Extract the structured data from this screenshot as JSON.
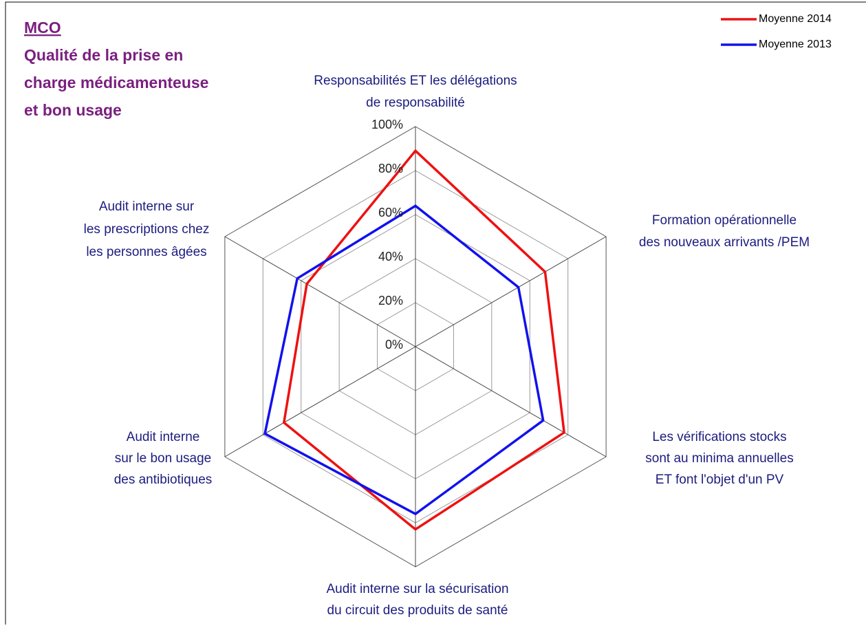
{
  "chart_data": {
    "type": "radar",
    "title": "MCO",
    "subtitle": [
      "Qualité de la prise en",
      "charge médicamenteuse",
      "et bon usage"
    ],
    "categories": [
      [
        "Responsabilités ET les délégations",
        "de responsabilité"
      ],
      [
        "Formation opérationnelle",
        "des nouveaux arrivants /PEM"
      ],
      [
        "Les vérifications stocks",
        "sont au minima annuelles",
        "ET font l'objet d'un PV"
      ],
      [
        "Audit interne sur la sécurisation",
        "du circuit des produits de santé"
      ],
      [
        "Audit interne",
        "sur le bon usage",
        "des antibiotiques"
      ],
      [
        "Audit interne sur",
        "les prescriptions chez",
        "les personnes âgées"
      ]
    ],
    "series": [
      {
        "name": "Moyenne 2014",
        "color": "#ee1111",
        "values": [
          89,
          68,
          78,
          83,
          69,
          57
        ]
      },
      {
        "name": "Moyenne 2013",
        "color": "#1111ee",
        "values": [
          64,
          54,
          67,
          76,
          79,
          62
        ]
      }
    ],
    "ylim": [
      0,
      100
    ],
    "yticks": [
      {
        "value": 0,
        "label": "0%"
      },
      {
        "value": 20,
        "label": "20%"
      },
      {
        "value": 40,
        "label": "40%"
      },
      {
        "value": 60,
        "label": "60%"
      },
      {
        "value": 80,
        "label": "80%"
      },
      {
        "value": 100,
        "label": "100%"
      }
    ],
    "grid": true,
    "legend": "top-right"
  }
}
